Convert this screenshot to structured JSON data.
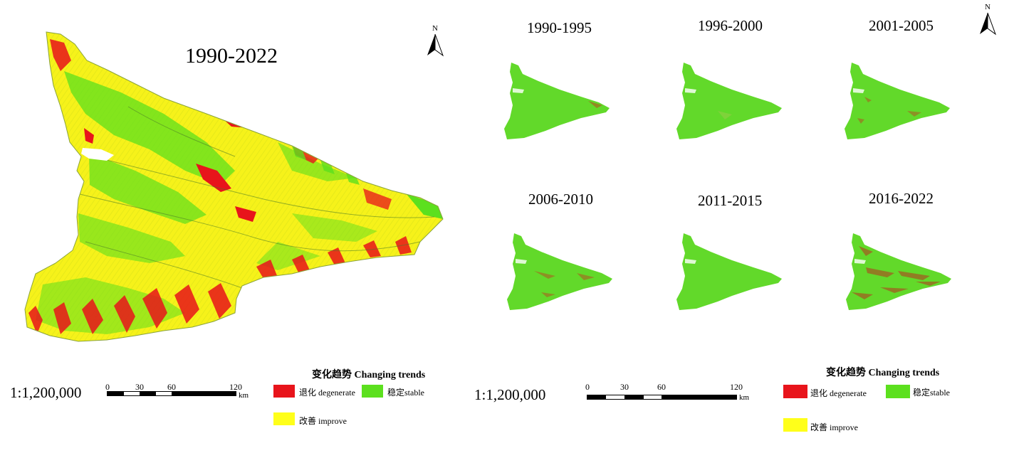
{
  "left_panel": {
    "title": "1990-2022",
    "north_label": "N",
    "scale_ratio": "1:1,200,000",
    "scale_ticks": [
      "0",
      "30",
      "60",
      "120"
    ],
    "scale_unit": "km",
    "legend": {
      "title": "变化趋势 Changing trends",
      "items": [
        {
          "label": "退化 degenerate",
          "color": "#e8141b"
        },
        {
          "label": "稳定stable",
          "color": "#5ce01e"
        },
        {
          "label": "改善 improve",
          "color": "#ffff1a"
        }
      ]
    }
  },
  "right_panel": {
    "north_label": "N",
    "periods": [
      "1990-1995",
      "1996-2000",
      "2001-2005",
      "2006-2010",
      "2011-2015",
      "2016-2022"
    ],
    "scale_ratio": "1:1,200,000",
    "scale_ticks": [
      "0",
      "30",
      "60",
      "120"
    ],
    "scale_unit": "km",
    "legend": {
      "title": "变化趋势 Changing trends",
      "items": [
        {
          "label": "退化 degenerate",
          "color": "#e8141b"
        },
        {
          "label": "稳定stable",
          "color": "#5ce01e"
        },
        {
          "label": "改善 improve",
          "color": "#ffff1a"
        }
      ]
    }
  }
}
